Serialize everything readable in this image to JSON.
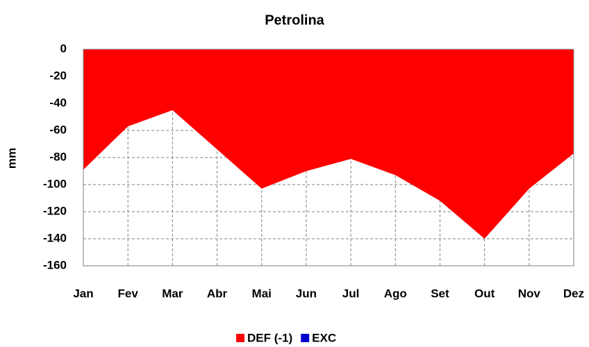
{
  "chart_data": {
    "type": "area",
    "title": "Petrolina",
    "y_label": "mm",
    "categories": [
      "Jan",
      "Fev",
      "Mar",
      "Abr",
      "Mai",
      "Jun",
      "Jul",
      "Ago",
      "Set",
      "Out",
      "Nov",
      "Dez"
    ],
    "series": [
      {
        "name": "DEF (-1)",
        "color": "#ff0000",
        "values": [
          -89,
          -57,
          -45,
          -74,
          -103,
          -90,
          -81,
          -93,
          -112,
          -140,
          -103,
          -77
        ]
      },
      {
        "name": "EXC",
        "color": "#0000cc",
        "values": [
          0,
          0,
          0,
          0,
          0,
          0,
          0,
          0,
          0,
          0,
          0,
          0
        ]
      }
    ],
    "ylim": [
      -160,
      0
    ],
    "yticks": [
      0,
      -20,
      -40,
      -60,
      -80,
      -100,
      -120,
      -140,
      -160
    ],
    "grid": true,
    "legend": "bottom"
  }
}
